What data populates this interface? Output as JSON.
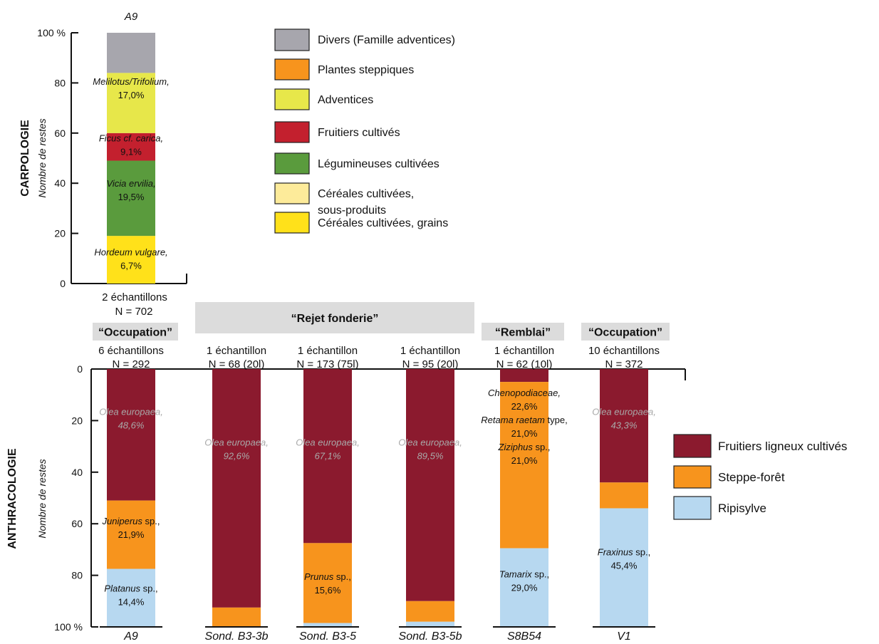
{
  "chart_data": [
    {
      "type": "bar",
      "stacked": true,
      "section_label": "CARPOLOGIE",
      "ylabel": "Nombre de restes",
      "ylim": [
        0,
        100
      ],
      "yticks": [
        "0",
        "20",
        "40",
        "60",
        "80",
        "100 %"
      ],
      "top_label": "A9",
      "categories": [
        "A9"
      ],
      "meta": [
        {
          "samples": "2 échantillons",
          "n": "N = 702",
          "group": "“Occupation”"
        }
      ],
      "series": [
        {
          "name": "Céréales cultivées, grains",
          "values": [
            19
          ],
          "color": "#ffe11a"
        },
        {
          "name": "Légumineuses cultivées",
          "values": [
            30
          ],
          "color": "#5a9b3d"
        },
        {
          "name": "Fruitiers cultivés",
          "values": [
            11
          ],
          "color": "#c3202e"
        },
        {
          "name": "Adventices",
          "values": [
            24
          ],
          "color": "#e7e74a"
        },
        {
          "name": "Divers (Famille adventices)",
          "values": [
            16
          ],
          "color": "#a7a6ad"
        }
      ],
      "annotations": [
        {
          "taxon": "Hordeum vulgare,",
          "value": "6,7%",
          "y": 9.5,
          "color": "#111111"
        },
        {
          "taxon": "Vicia ervilia,",
          "value": "19,5%",
          "y": 37,
          "color": "#111111"
        },
        {
          "taxon": "Ficus cf. carica,",
          "value": "9,1%",
          "y": 55,
          "color": "#111111"
        },
        {
          "taxon": "Melilotus/Trifolium,",
          "value": "17,0%",
          "y": 77.5,
          "color": "#111111"
        }
      ],
      "legend": [
        {
          "label": "Divers (Famille adventices)",
          "color": "#a7a6ad"
        },
        {
          "label": "Plantes steppiques",
          "color": "#f7941d"
        },
        {
          "label": "Adventices",
          "color": "#e7e74a"
        },
        {
          "label": "Fruitiers cultivés",
          "color": "#c3202e"
        },
        {
          "label": "Légumineuses cultivées",
          "color": "#5a9b3d"
        },
        {
          "label": "Céréales cultivées,\nsous-produits",
          "color": "#fdeb9a"
        },
        {
          "label": "Céréales cultivées, grains",
          "color": "#ffe11a"
        }
      ]
    },
    {
      "type": "bar",
      "stacked": true,
      "y_inverted": true,
      "section_label": "ANTHRACOLOGIE",
      "ylabel": "Nombre de restes",
      "ylim": [
        0,
        100
      ],
      "yticks": [
        "0",
        "20",
        "40",
        "60",
        "80",
        "100 %"
      ],
      "categories": [
        "A9",
        "Sond. B3-3b",
        "Sond. B3-5",
        "Sond. B3-5b",
        "S8B54",
        "V1"
      ],
      "meta": [
        {
          "samples": "6 échantillons",
          "n": "N = 292"
        },
        {
          "samples": "1 échantillon",
          "n": "N = 68 (20l)"
        },
        {
          "samples": "1 échantillon",
          "n": "N = 173 (75l)"
        },
        {
          "samples": "1 échantillon",
          "n": "N = 95 (20l)"
        },
        {
          "samples": "1 échantillon",
          "n": "N = 62 (10l)"
        },
        {
          "samples": "10 échantillons",
          "n": "N = 372"
        }
      ],
      "groups": [
        {
          "label": "“Rejet fonderie”",
          "categories": [
            "Sond. B3-3b",
            "Sond. B3-5",
            "Sond. B3-5b"
          ]
        },
        {
          "label": "“Remblai”",
          "categories": [
            "S8B54"
          ]
        },
        {
          "label": "“Occupation”",
          "categories": [
            "V1"
          ]
        }
      ],
      "series": [
        {
          "name": "Fruitiers ligneux cultivés",
          "values": [
            51,
            92.5,
            67.5,
            90,
            5,
            44
          ],
          "color": "#8b1a2e"
        },
        {
          "name": "Steppe-forêt",
          "values": [
            26.5,
            7.5,
            31,
            8,
            64.5,
            10
          ],
          "color": "#f7941d"
        },
        {
          "name": "Ripisylve",
          "values": [
            22.5,
            0,
            1.5,
            2,
            30.5,
            46
          ],
          "color": "#b7d8f0"
        }
      ],
      "annotations": [
        {
          "category": "A9",
          "lines": [
            [
              "Olea europaea,",
              "i"
            ],
            [
              "48,6%",
              "i"
            ]
          ],
          "y": 19,
          "color": "#a9a9a9"
        },
        {
          "category": "A9",
          "lines": [
            [
              "Juniperus",
              "i",
              " sp.,"
            ],
            [
              "21,9%",
              ""
            ]
          ],
          "y": 61.5,
          "color": "#111111"
        },
        {
          "category": "A9",
          "lines": [
            [
              "Platanus",
              "i",
              " sp.,"
            ],
            [
              "14,4%",
              ""
            ]
          ],
          "y": 87.5,
          "color": "#111111"
        },
        {
          "category": "Sond. B3-3b",
          "lines": [
            [
              "Olea europaea,",
              "i"
            ],
            [
              "92,6%",
              "i"
            ]
          ],
          "y": 31,
          "color": "#a9a9a9"
        },
        {
          "category": "Sond. B3-5",
          "lines": [
            [
              "Olea europaea,",
              "i"
            ],
            [
              "67,1%",
              "i"
            ]
          ],
          "y": 31,
          "color": "#a9a9a9"
        },
        {
          "category": "Sond. B3-5",
          "lines": [
            [
              "Prunus",
              "i",
              " sp.,"
            ],
            [
              "15,6%",
              ""
            ]
          ],
          "y": 83,
          "color": "#111111"
        },
        {
          "category": "Sond. B3-5b",
          "lines": [
            [
              "Olea europaea,",
              "i"
            ],
            [
              "89,5%",
              "i"
            ]
          ],
          "y": 31,
          "color": "#a9a9a9"
        },
        {
          "category": "S8B54",
          "lines": [
            [
              "Chenopodiaceae,",
              "i"
            ],
            [
              "22,6%",
              ""
            ],
            [
              "Retama raetam",
              "i",
              " type,"
            ],
            [
              "21,0%",
              ""
            ],
            [
              "Ziziphus",
              "i",
              " sp.,"
            ],
            [
              "21,0%",
              ""
            ]
          ],
          "y": 10.5,
          "color": "#111111",
          "start": true
        },
        {
          "category": "S8B54",
          "lines": [
            [
              "Tamarix",
              "i",
              " sp.,"
            ],
            [
              "29,0%",
              ""
            ]
          ],
          "y": 82,
          "color": "#111111"
        },
        {
          "category": "V1",
          "lines": [
            [
              "Olea europaea,",
              "i"
            ],
            [
              "43,3%",
              "i"
            ]
          ],
          "y": 19,
          "color": "#a9a9a9"
        },
        {
          "category": "V1",
          "lines": [
            [
              "Fraxinus",
              "i",
              " sp.,"
            ],
            [
              "45,4%",
              ""
            ]
          ],
          "y": 73.5,
          "color": "#111111"
        }
      ],
      "legend": [
        {
          "label": "Fruitiers ligneux cultivés",
          "color": "#8b1a2e"
        },
        {
          "label": "Steppe-forêt",
          "color": "#f7941d"
        },
        {
          "label": "Ripisylve",
          "color": "#b7d8f0"
        }
      ]
    }
  ]
}
